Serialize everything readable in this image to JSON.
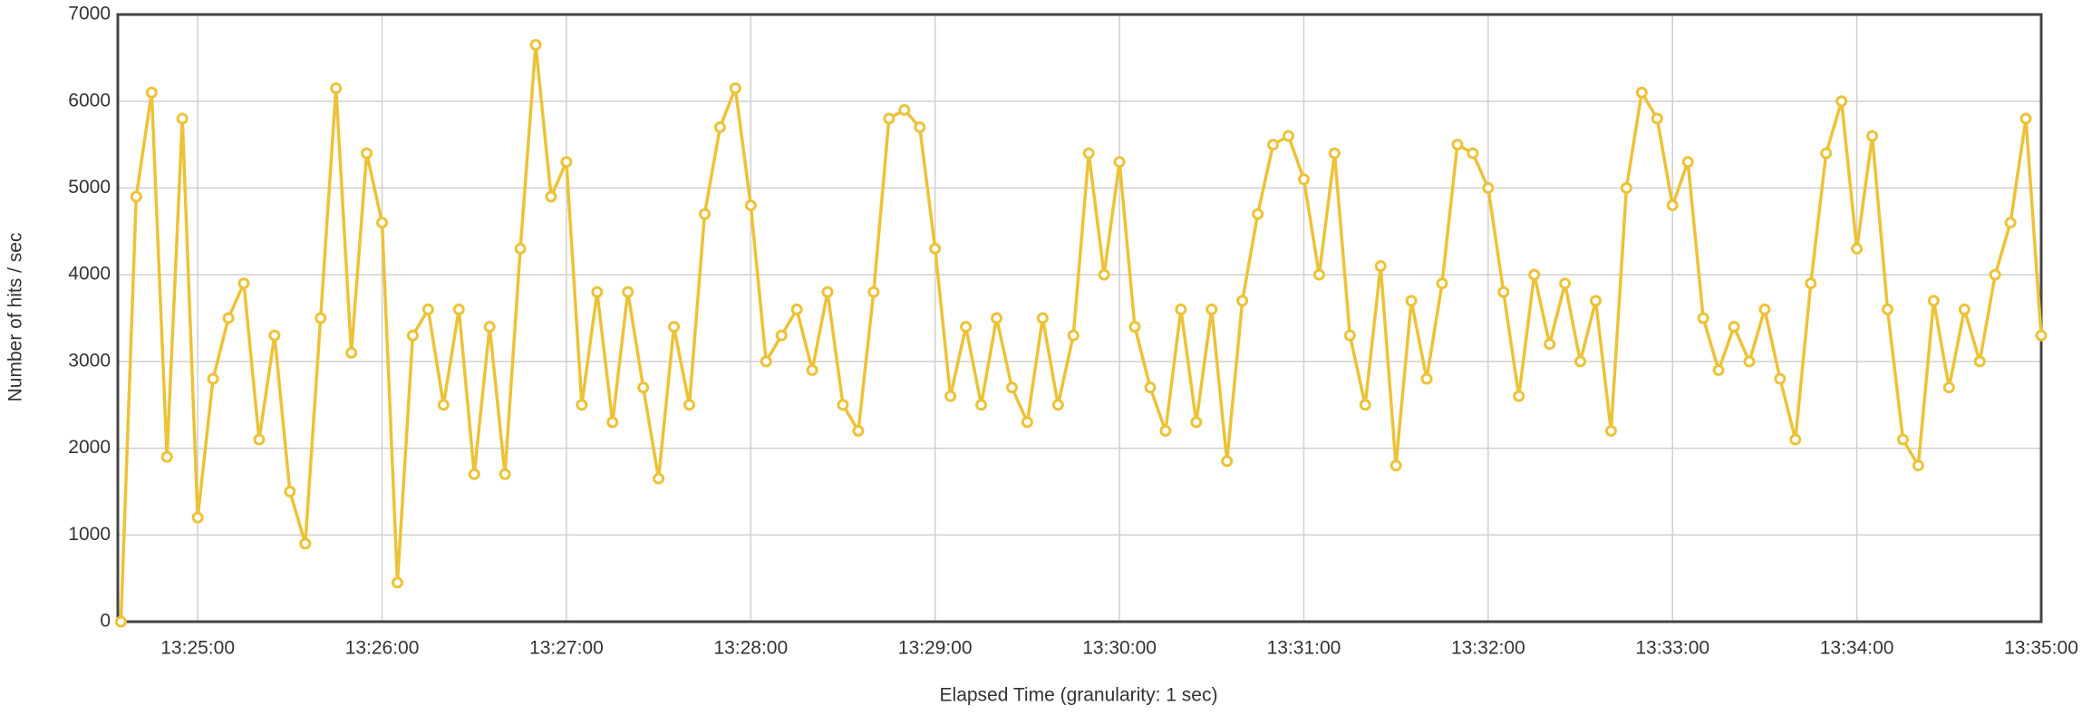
{
  "chart_data": {
    "type": "line",
    "x_label": "Elapsed Time (granularity: 1 sec)",
    "y_label": "Number of hits / sec",
    "color": "#ecc237",
    "grid": true,
    "xlim": [
      "13:24:34",
      "13:35:00"
    ],
    "xticks": [
      "13:25:00",
      "13:26:00",
      "13:27:00",
      "13:28:00",
      "13:29:00",
      "13:30:00",
      "13:31:00",
      "13:32:00",
      "13:33:00",
      "13:34:00",
      "13:35:00"
    ],
    "ylim": [
      0,
      7000
    ],
    "yticks": [
      0,
      1000,
      2000,
      3000,
      4000,
      5000,
      6000,
      7000
    ],
    "x": [
      "13:24:35",
      "13:24:40",
      "13:24:45",
      "13:24:50",
      "13:24:55",
      "13:25:00",
      "13:25:05",
      "13:25:10",
      "13:25:15",
      "13:25:20",
      "13:25:25",
      "13:25:30",
      "13:25:35",
      "13:25:40",
      "13:25:45",
      "13:25:50",
      "13:25:55",
      "13:26:00",
      "13:26:05",
      "13:26:10",
      "13:26:15",
      "13:26:20",
      "13:26:25",
      "13:26:30",
      "13:26:35",
      "13:26:40",
      "13:26:45",
      "13:26:50",
      "13:26:55",
      "13:27:00",
      "13:27:05",
      "13:27:10",
      "13:27:15",
      "13:27:20",
      "13:27:25",
      "13:27:30",
      "13:27:35",
      "13:27:40",
      "13:27:45",
      "13:27:50",
      "13:27:55",
      "13:28:00",
      "13:28:05",
      "13:28:10",
      "13:28:15",
      "13:28:20",
      "13:28:25",
      "13:28:30",
      "13:28:35",
      "13:28:40",
      "13:28:45",
      "13:28:50",
      "13:28:55",
      "13:29:00",
      "13:29:05",
      "13:29:10",
      "13:29:15",
      "13:29:20",
      "13:29:25",
      "13:29:30",
      "13:29:35",
      "13:29:40",
      "13:29:45",
      "13:29:50",
      "13:29:55",
      "13:30:00",
      "13:30:05",
      "13:30:10",
      "13:30:15",
      "13:30:20",
      "13:30:25",
      "13:30:30",
      "13:30:35",
      "13:30:40",
      "13:30:45",
      "13:30:50",
      "13:30:55",
      "13:31:00",
      "13:31:05",
      "13:31:10",
      "13:31:15",
      "13:31:20",
      "13:31:25",
      "13:31:30",
      "13:31:35",
      "13:31:40",
      "13:31:45",
      "13:31:50",
      "13:31:55",
      "13:32:00",
      "13:32:05",
      "13:32:10",
      "13:32:15",
      "13:32:20",
      "13:32:25",
      "13:32:30",
      "13:32:35",
      "13:32:40",
      "13:32:45",
      "13:32:50",
      "13:32:55",
      "13:33:00",
      "13:33:05",
      "13:33:10",
      "13:33:15",
      "13:33:20",
      "13:33:25",
      "13:33:30",
      "13:33:35",
      "13:33:40",
      "13:33:45",
      "13:33:50",
      "13:33:55",
      "13:34:00",
      "13:34:05",
      "13:34:10",
      "13:34:15",
      "13:34:20",
      "13:34:25",
      "13:34:30",
      "13:34:35",
      "13:34:40",
      "13:34:45",
      "13:34:50",
      "13:34:55",
      "13:35:00"
    ],
    "values": [
      0,
      4900,
      6100,
      1900,
      5800,
      1200,
      2800,
      3500,
      3900,
      2100,
      3300,
      1500,
      900,
      3500,
      6150,
      3100,
      5400,
      4600,
      450,
      3300,
      3600,
      2500,
      3600,
      1700,
      3400,
      1700,
      4300,
      6650,
      4900,
      5300,
      2500,
      3800,
      2300,
      3800,
      2700,
      1650,
      3400,
      2500,
      4700,
      5700,
      6150,
      4800,
      3000,
      3300,
      3600,
      2900,
      3800,
      2500,
      2200,
      3800,
      5800,
      5900,
      5700,
      4300,
      2600,
      3400,
      2500,
      3500,
      2700,
      2300,
      3500,
      2500,
      3300,
      5400,
      4000,
      5300,
      3400,
      2700,
      2200,
      3600,
      2300,
      3600,
      1850,
      3700,
      4700,
      5500,
      5600,
      5100,
      4000,
      5400,
      3300,
      2500,
      4100,
      1800,
      3700,
      2800,
      3900,
      5500,
      5400,
      5000,
      3800,
      2600,
      4000,
      3200,
      3900,
      3000,
      3700,
      2200,
      5000,
      6100,
      5800,
      4800,
      5300,
      3500,
      2900,
      3400,
      3000,
      3600,
      2800,
      2100,
      3900,
      5400,
      6000,
      4300,
      5600,
      3600,
      2100,
      1800,
      3700,
      2700,
      3600,
      3000,
      4000,
      4600,
      5800,
      3300
    ]
  }
}
